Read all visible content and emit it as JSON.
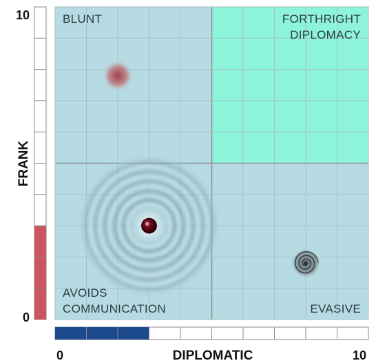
{
  "chart_data": {
    "type": "scatter",
    "title": "",
    "xlabel": "DIPLOMATIC",
    "ylabel": "FRANK",
    "xlim": [
      0,
      10
    ],
    "ylim": [
      0,
      10
    ],
    "x_tick_labels": [
      "0",
      "10"
    ],
    "y_tick_labels": [
      "0",
      "10"
    ],
    "grid": true,
    "grid_step": 1,
    "quadrants": [
      {
        "label": "BLUNT",
        "lines": [
          "BLUNT"
        ],
        "corner": "top-left",
        "color": "#b7dbe2"
      },
      {
        "label": "FORTHRIGHT DIPLOMACY",
        "lines": [
          "FORTHRIGHT",
          "DIPLOMACY"
        ],
        "corner": "top-right",
        "color": "#8ef4d9"
      },
      {
        "label": "AVOIDS COMMUNICATION",
        "lines": [
          "AVOIDS",
          "COMMUNICATION"
        ],
        "corner": "bottom-left",
        "color": "#b7dbe2"
      },
      {
        "label": "EVASIVE",
        "lines": [
          "EVASIVE"
        ],
        "corner": "bottom-right",
        "color": "#b7dbe2"
      }
    ],
    "points": [
      {
        "x": 2.0,
        "y": 7.8,
        "style": "blurred-red"
      },
      {
        "x": 3.0,
        "y": 3.0,
        "style": "dark-red-with-rings"
      },
      {
        "x": 8.0,
        "y": 1.8,
        "style": "gray-spiral"
      }
    ],
    "x_bar": {
      "value": 3,
      "max": 10,
      "color": "#1c4a8c"
    },
    "y_bar": {
      "value": 3,
      "max": 10,
      "color": "#c9575d"
    }
  }
}
